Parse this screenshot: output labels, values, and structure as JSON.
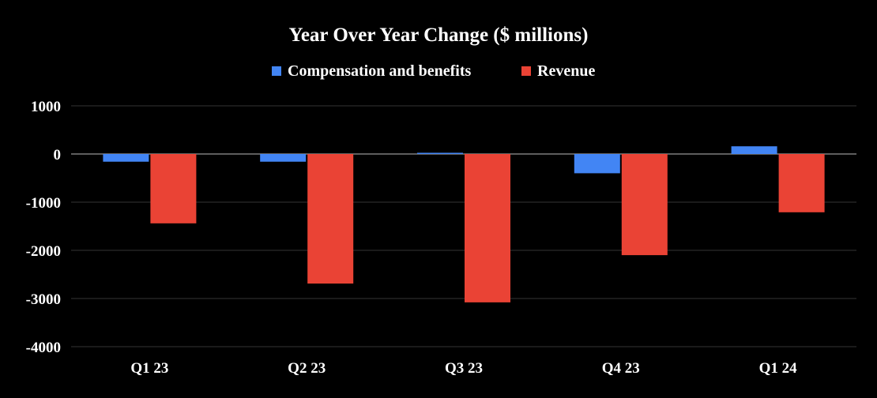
{
  "chart_data": {
    "type": "bar",
    "title": "Year Over Year Change ($ millions)",
    "categories": [
      "Q1 23",
      "Q2 23",
      "Q3 23",
      "Q4 23",
      "Q1 24"
    ],
    "series": [
      {
        "name": "Compensation and benefits",
        "color": "#4285f4",
        "values": [
          -160,
          -160,
          25,
          -400,
          160
        ]
      },
      {
        "name": "Revenue",
        "color": "#ea4335",
        "values": [
          -1440,
          -2690,
          -3080,
          -2100,
          -1210
        ]
      }
    ],
    "ylim": [
      -4000,
      1000
    ],
    "yticks": [
      "1000",
      "0",
      "-1000",
      "-2000",
      "-3000",
      "-4000"
    ],
    "grid": true,
    "legend": "top-center",
    "xlabel": "",
    "ylabel": ""
  }
}
